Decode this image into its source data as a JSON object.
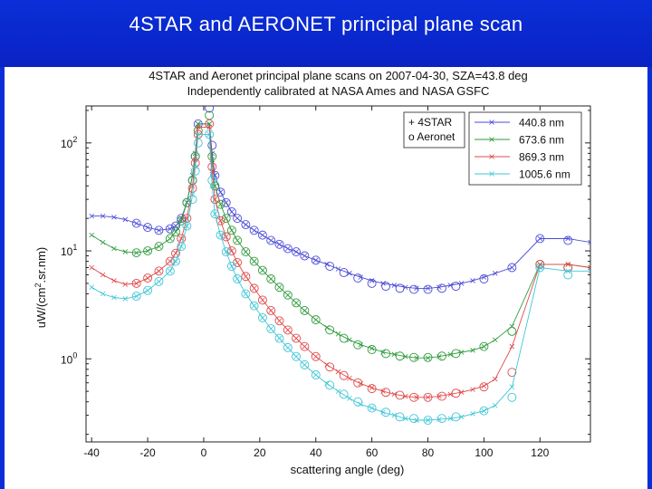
{
  "header": {
    "title": "4STAR and AERONET principal plane scan"
  },
  "chart_data": {
    "type": "line",
    "title": "4STAR and Aeronet principal plane scans on  2007-04-30, SZA=43.8 deg",
    "subtitle": "Independently calibrated at NASA Ames and NASA GSFC",
    "xlabel": "scattering angle (deg)",
    "ylabel": "uW/(cm2.sr.nm)",
    "ylabel_parts": {
      "main": "uW/(cm",
      "sup": "2",
      "tail": ".sr.nm)"
    },
    "xlim": [
      -42,
      138
    ],
    "ylim": [
      0.17,
      220
    ],
    "yscale": "log",
    "grid": false,
    "x_ticks": [
      -40,
      -20,
      0,
      20,
      40,
      60,
      80,
      100,
      120
    ],
    "x_tick_labels": [
      "-40",
      "-20",
      "0",
      "20",
      "40",
      "60",
      "80",
      "100",
      "120"
    ],
    "y_ticks": [
      1,
      10,
      100
    ],
    "y_tick_labels": [
      {
        "base": "10",
        "exp": "0"
      },
      {
        "base": "10",
        "exp": "1"
      },
      {
        "base": "10",
        "exp": "2"
      }
    ],
    "legend_instruments": {
      "position": "top-right",
      "items": [
        {
          "label": "+ 4STAR",
          "color": "#111111"
        },
        {
          "label": "o Aeronet",
          "color": "#cc0000"
        }
      ]
    },
    "legend_position": "top-right",
    "series": [
      {
        "name": "440.8 nm",
        "color": "#4a4ad8",
        "star_x": [
          -40,
          -36,
          -32,
          -28,
          -24,
          -20,
          -16,
          -12,
          -10,
          -8,
          -6,
          -4,
          -3,
          -2,
          2,
          3,
          4,
          6,
          8,
          10,
          12,
          15,
          18,
          21,
          24,
          27,
          30,
          33,
          36,
          40,
          44,
          48,
          52,
          56,
          60,
          64,
          68,
          72,
          76,
          80,
          84,
          88,
          92,
          96,
          100,
          104,
          110,
          120,
          130,
          138
        ],
        "star_y": [
          21,
          21,
          20.5,
          19.5,
          18,
          16.5,
          15.5,
          16,
          17,
          20,
          28,
          50,
          80,
          150,
          150,
          80,
          50,
          35,
          28,
          23,
          20,
          17.5,
          15.5,
          14,
          12.5,
          11.5,
          10.5,
          9.8,
          9,
          8.2,
          7.5,
          6.8,
          6.2,
          5.7,
          5.3,
          5,
          4.8,
          4.6,
          4.5,
          4.5,
          4.6,
          4.8,
          5,
          5.3,
          5.7,
          6.2,
          7,
          13,
          13,
          12
        ],
        "aer_x": [
          -24,
          -20,
          -16,
          -12,
          -10,
          -8,
          -6,
          -4,
          -3,
          -2,
          2,
          3,
          4,
          6,
          8,
          10,
          12,
          15,
          18,
          21,
          24,
          27,
          30,
          33,
          36,
          40,
          45,
          50,
          55,
          60,
          65,
          70,
          75,
          80,
          85,
          90,
          100,
          110,
          120,
          130
        ],
        "aer_y": [
          18,
          16.5,
          15.5,
          16,
          17,
          20,
          28,
          45,
          75,
          150,
          210,
          95,
          50,
          35,
          28,
          23,
          20,
          17.5,
          15.5,
          14,
          12.5,
          11.5,
          10.5,
          9.8,
          9,
          8.2,
          7.2,
          6.3,
          5.6,
          5,
          4.7,
          4.5,
          4.4,
          4.4,
          4.5,
          4.7,
          5.5,
          7,
          13,
          12.5
        ]
      },
      {
        "name": "673.6 nm",
        "color": "#2e9a3c",
        "star_x": [
          -40,
          -36,
          -32,
          -28,
          -24,
          -20,
          -16,
          -12,
          -10,
          -8,
          -6,
          -4,
          -3,
          -2,
          2,
          3,
          4,
          6,
          8,
          10,
          12,
          15,
          18,
          21,
          24,
          27,
          30,
          33,
          36,
          40,
          44,
          48,
          52,
          56,
          60,
          64,
          68,
          72,
          76,
          80,
          84,
          88,
          92,
          96,
          100,
          104,
          110,
          120,
          130,
          138
        ],
        "star_y": [
          14,
          12,
          10.5,
          9.8,
          9.6,
          10,
          11,
          13,
          15,
          19,
          28,
          50,
          80,
          150,
          150,
          70,
          40,
          27,
          20,
          15.5,
          12.5,
          9.8,
          8,
          6.6,
          5.5,
          4.6,
          3.9,
          3.3,
          2.8,
          2.3,
          1.95,
          1.7,
          1.5,
          1.35,
          1.25,
          1.15,
          1.1,
          1.05,
          1.02,
          1.02,
          1.05,
          1.1,
          1.15,
          1.2,
          1.3,
          1.5,
          2,
          7.5,
          7.5,
          7
        ],
        "aer_x": [
          -24,
          -20,
          -16,
          -12,
          -10,
          -8,
          -6,
          -4,
          -3,
          -2,
          2,
          3,
          4,
          6,
          8,
          10,
          12,
          15,
          18,
          21,
          24,
          27,
          30,
          33,
          36,
          40,
          45,
          50,
          55,
          60,
          65,
          70,
          75,
          80,
          85,
          90,
          100,
          110,
          120,
          130
        ],
        "aer_y": [
          9.6,
          10,
          11,
          13,
          15,
          19,
          28,
          45,
          75,
          130,
          180,
          75,
          40,
          27,
          20,
          15.5,
          12.5,
          9.8,
          8,
          6.6,
          5.5,
          4.6,
          3.9,
          3.3,
          2.8,
          2.3,
          1.85,
          1.55,
          1.35,
          1.22,
          1.12,
          1.06,
          1.03,
          1.03,
          1.06,
          1.12,
          1.3,
          1.8,
          7.5,
          7
        ]
      },
      {
        "name": "869.3 nm",
        "color": "#e04848",
        "star_x": [
          -40,
          -36,
          -32,
          -28,
          -24,
          -20,
          -16,
          -12,
          -10,
          -8,
          -6,
          -4,
          -3,
          -2,
          2,
          3,
          4,
          6,
          8,
          10,
          12,
          15,
          18,
          21,
          24,
          27,
          30,
          33,
          36,
          40,
          44,
          48,
          52,
          56,
          60,
          64,
          68,
          72,
          76,
          80,
          84,
          88,
          92,
          96,
          100,
          104,
          110,
          120,
          130,
          138
        ],
        "star_y": [
          7,
          6,
          5.3,
          4.9,
          5,
          5.6,
          6.5,
          8,
          9.5,
          13,
          20,
          40,
          70,
          140,
          140,
          55,
          30,
          19,
          13.5,
          10,
          7.8,
          5.8,
          4.5,
          3.5,
          2.8,
          2.25,
          1.85,
          1.55,
          1.3,
          1.05,
          0.88,
          0.76,
          0.66,
          0.59,
          0.54,
          0.5,
          0.47,
          0.45,
          0.44,
          0.44,
          0.45,
          0.47,
          0.49,
          0.52,
          0.56,
          0.65,
          1.3,
          7.5,
          7.5,
          7
        ],
        "aer_x": [
          -24,
          -20,
          -16,
          -12,
          -10,
          -8,
          -6,
          -4,
          -3,
          -2,
          2,
          3,
          4,
          6,
          8,
          10,
          12,
          15,
          18,
          21,
          24,
          27,
          30,
          33,
          36,
          40,
          45,
          50,
          55,
          60,
          65,
          70,
          75,
          80,
          85,
          90,
          100,
          110,
          120,
          130
        ],
        "aer_y": [
          5,
          5.6,
          6.5,
          8,
          9.5,
          13,
          20,
          38,
          65,
          120,
          150,
          60,
          30,
          19,
          13.5,
          10,
          7.8,
          5.8,
          4.5,
          3.5,
          2.8,
          2.25,
          1.85,
          1.55,
          1.3,
          1.05,
          0.84,
          0.7,
          0.6,
          0.53,
          0.49,
          0.46,
          0.44,
          0.44,
          0.45,
          0.48,
          0.55,
          0.75,
          7.5,
          7
        ]
      },
      {
        "name": "1005.6 nm",
        "color": "#3ec6d8",
        "star_x": [
          -40,
          -36,
          -32,
          -28,
          -24,
          -20,
          -16,
          -12,
          -10,
          -8,
          -6,
          -4,
          -3,
          -2,
          2,
          3,
          4,
          6,
          8,
          10,
          12,
          15,
          18,
          21,
          24,
          27,
          30,
          33,
          36,
          40,
          44,
          48,
          52,
          56,
          60,
          64,
          68,
          72,
          76,
          80,
          84,
          88,
          92,
          96,
          100,
          104,
          110,
          120,
          130,
          138
        ],
        "star_y": [
          4.6,
          4,
          3.7,
          3.6,
          3.8,
          4.3,
          5.2,
          6.5,
          8,
          11,
          17,
          33,
          60,
          120,
          120,
          40,
          22,
          14,
          9.8,
          7.2,
          5.5,
          4,
          3.1,
          2.4,
          1.9,
          1.55,
          1.27,
          1.05,
          0.88,
          0.71,
          0.59,
          0.5,
          0.43,
          0.38,
          0.35,
          0.32,
          0.3,
          0.28,
          0.27,
          0.27,
          0.275,
          0.28,
          0.29,
          0.31,
          0.33,
          0.37,
          0.55,
          7,
          6.5,
          6.5
        ],
        "aer_x": [
          -24,
          -20,
          -16,
          -12,
          -10,
          -8,
          -6,
          -4,
          -3,
          -2,
          2,
          3,
          4,
          6,
          8,
          10,
          12,
          15,
          18,
          21,
          24,
          27,
          30,
          33,
          36,
          40,
          45,
          50,
          55,
          60,
          65,
          70,
          75,
          80,
          85,
          90,
          100,
          110,
          120,
          130
        ],
        "aer_y": [
          3.8,
          4.3,
          5.2,
          6.5,
          8,
          11,
          17,
          30,
          55,
          100,
          120,
          45,
          22,
          14,
          9.8,
          7.2,
          5.5,
          4,
          3.1,
          2.4,
          1.9,
          1.55,
          1.27,
          1.05,
          0.88,
          0.71,
          0.57,
          0.47,
          0.4,
          0.35,
          0.32,
          0.29,
          0.28,
          0.27,
          0.28,
          0.29,
          0.33,
          0.44,
          7,
          6
        ]
      }
    ]
  }
}
